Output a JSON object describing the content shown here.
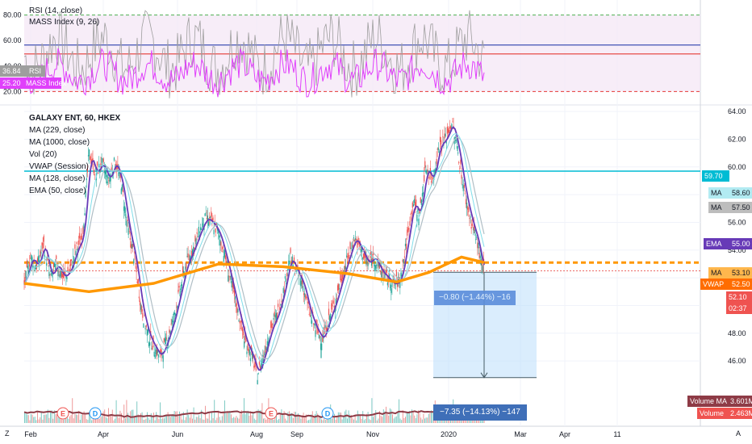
{
  "chart_data": [
    {
      "type": "line",
      "panel": "indicators",
      "ylim": [
        12,
        88
      ],
      "ticks": [
        20,
        40,
        60,
        80
      ],
      "tick_labels": [
        "20.00",
        "40.00",
        "60.00",
        "80.00"
      ],
      "legend": [
        "RSI (14, close)",
        "MASS Index (9, 26)"
      ],
      "series": [
        {
          "name": "RSI",
          "last": "36.84",
          "color": "#9e9e9e"
        },
        {
          "name": "MASS Index",
          "last": "25.20",
          "color": "#e040fb"
        }
      ],
      "levels": [
        {
          "value": 80,
          "color": "#4caf50",
          "dashed": true
        },
        {
          "value": 56.5,
          "color": "#3f51b5",
          "dashed": false
        },
        {
          "value": 49.5,
          "color": "#e53935",
          "dashed": false
        },
        {
          "value": 20,
          "color": "#e53935",
          "dashed": true
        }
      ],
      "band": {
        "from": 20,
        "to": 80,
        "color": "#f3e5f5"
      }
    },
    {
      "type": "line",
      "panel": "price",
      "title": "GALAXY ENT, 60, HKEX",
      "ylim": [
        44.2,
        64.3
      ],
      "ticks": [
        46,
        48,
        50,
        52,
        54,
        56,
        58,
        60,
        62,
        64
      ],
      "tick_labels": [
        "46.00",
        "48.00",
        "50.00",
        "52.00",
        "54.00",
        "56.00",
        "58.00",
        "60.00",
        "62.00",
        "64.00"
      ],
      "legend": [
        "MA (229, close)",
        "MA (1000, close)",
        "Vol (20)",
        "VWAP (Session)",
        "MA (128, close)",
        "EMA (50, close)"
      ],
      "x_labels": [
        "Feb",
        "Apr",
        "Jun",
        "Aug",
        "Sep",
        "Nov",
        "2020",
        "Mar",
        "Apr",
        "11"
      ],
      "price_path": [
        [
          0,
          51.5
        ],
        [
          4,
          53.5
        ],
        [
          8,
          52.8
        ],
        [
          12,
          54.5
        ],
        [
          16,
          52.0
        ],
        [
          20,
          53.0
        ],
        [
          24,
          52.0
        ],
        [
          28,
          52.5
        ],
        [
          32,
          54.0
        ],
        [
          36,
          55.0
        ],
        [
          40,
          61.0
        ],
        [
          44,
          59.5
        ],
        [
          48,
          60.3
        ],
        [
          52,
          59.0
        ],
        [
          56,
          60.4
        ],
        [
          60,
          58.8
        ],
        [
          64,
          55.5
        ],
        [
          68,
          53.5
        ],
        [
          72,
          50.0
        ],
        [
          76,
          48.0
        ],
        [
          80,
          47.0
        ],
        [
          84,
          46.3
        ],
        [
          88,
          47.5
        ],
        [
          92,
          49.0
        ],
        [
          96,
          51.0
        ],
        [
          100,
          53.0
        ],
        [
          104,
          54.0
        ],
        [
          108,
          55.3
        ],
        [
          112,
          56.3
        ],
        [
          116,
          56.0
        ],
        [
          120,
          55.2
        ],
        [
          124,
          53.5
        ],
        [
          128,
          51.5
        ],
        [
          132,
          49.5
        ],
        [
          136,
          47.5
        ],
        [
          140,
          46.5
        ],
        [
          144,
          45.0
        ],
        [
          148,
          46.5
        ],
        [
          152,
          48.3
        ],
        [
          156,
          49.3
        ],
        [
          160,
          51.0
        ],
        [
          164,
          53.5
        ],
        [
          168,
          52.5
        ],
        [
          172,
          51.5
        ],
        [
          176,
          49.5
        ],
        [
          180,
          48.3
        ],
        [
          184,
          47.5
        ],
        [
          188,
          49.0
        ],
        [
          192,
          50.3
        ],
        [
          196,
          52.0
        ],
        [
          200,
          53.5
        ],
        [
          204,
          54.9
        ],
        [
          208,
          54.0
        ],
        [
          212,
          53.0
        ],
        [
          216,
          53.5
        ],
        [
          220,
          52.5
        ],
        [
          224,
          52.0
        ],
        [
          228,
          51.5
        ],
        [
          232,
          51.8
        ],
        [
          236,
          54.5
        ],
        [
          240,
          57.5
        ],
        [
          244,
          56.5
        ],
        [
          248,
          60.0
        ],
        [
          252,
          59.0
        ],
        [
          256,
          61.5
        ],
        [
          260,
          62.0
        ],
        [
          264,
          63.2
        ],
        [
          268,
          61.0
        ],
        [
          272,
          58.0
        ],
        [
          276,
          56.0
        ],
        [
          280,
          54.5
        ],
        [
          282,
          53.0
        ],
        [
          284,
          52.4
        ]
      ],
      "series": [
        {
          "name": "EMA",
          "last": "55.00",
          "color": "#673ab7"
        },
        {
          "name": "MA",
          "last": "53.10",
          "color": "#ff9800"
        },
        {
          "name": "MA",
          "last": "58.60",
          "color": "#80deea"
        },
        {
          "name": "MA",
          "last": "57.50",
          "color": "#bdbdbd"
        },
        {
          "name": "VWAP",
          "last": "52.50",
          "color": "#ff6d00"
        }
      ],
      "levels": [
        {
          "value": 59.7,
          "label": "59.70",
          "color": "#00bcd4",
          "dashed": false
        },
        {
          "value": 53.1,
          "color": "#ff9800",
          "dashed": true
        },
        {
          "value": 52.5,
          "color": "#e53935",
          "dashed": true
        }
      ],
      "last_price": "52.10",
      "countdown": "02:37",
      "measure": {
        "upper": {
          "price": 52.4,
          "text": "−0.80 (−1.44%) −16"
        },
        "lower": {
          "price": 44.8,
          "text": "−7.35 (−14.13%) −147"
        }
      },
      "volume": {
        "ma_label": "Volume MA",
        "ma_value": "3.601M",
        "vol_label": "Volume",
        "vol_value": "2.463M"
      },
      "event_markers": [
        "E",
        "D",
        "E",
        "D"
      ]
    }
  ],
  "ui": {
    "bottom_left": "Z",
    "bottom_right": "A"
  },
  "colors": {
    "bg": "#ffffff",
    "grid": "#f0f3fa",
    "up": "#26a69a",
    "down": "#ef5350",
    "measure": "#bbdefb"
  }
}
